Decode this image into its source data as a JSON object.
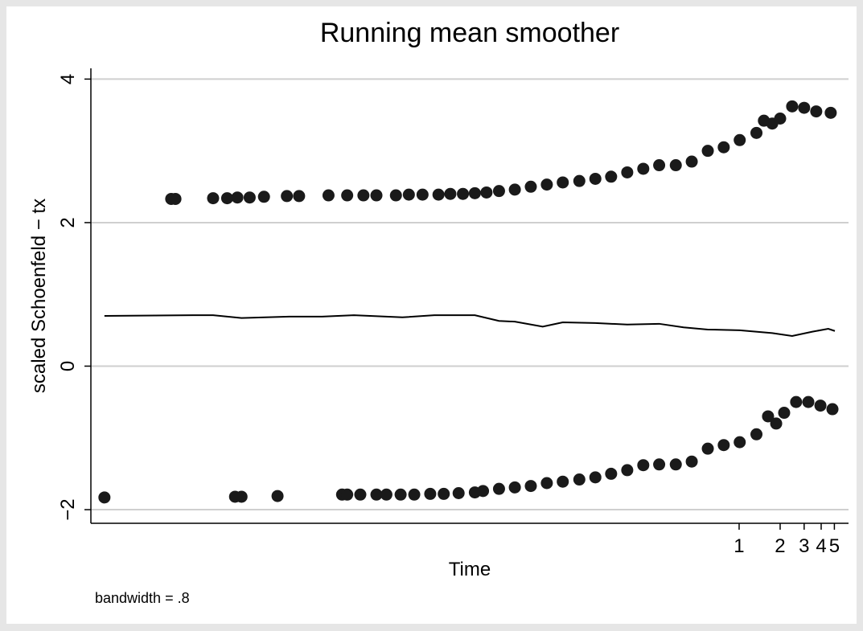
{
  "chart_data": {
    "type": "scatter",
    "title": "Running mean smoother",
    "x_label": "Time",
    "y_label": "scaled Schoenfeld − tx",
    "note": "bandwidth = .8",
    "x_log_scale": true,
    "grid": true,
    "xlim": [
      1.75e-05,
      6.35
    ],
    "xticks": [
      1,
      2,
      3,
      4,
      5
    ],
    "ylim": [
      -2.19,
      4.15
    ],
    "yticks": [
      {
        "value": -2,
        "label": "−2"
      },
      0,
      2,
      4
    ],
    "series": [
      {
        "type": "scatter",
        "color": "#1a1a1a",
        "x": [
          6.8e-05,
          7.3e-05,
          0.000138,
          0.000175,
          0.000208,
          0.000256,
          0.000326,
          0.00048,
          0.00059,
          0.00097,
          0.00133,
          0.00175,
          0.00218,
          0.00303,
          0.00377,
          0.00475,
          0.00622,
          0.0076,
          0.0094,
          0.0115,
          0.014,
          0.0173,
          0.0226,
          0.0296,
          0.0388,
          0.0508,
          0.0672,
          0.0881,
          0.115,
          0.151,
          0.198,
          0.259,
          0.343,
          0.449,
          0.589,
          0.771,
          1.01,
          1.34,
          1.52,
          1.75,
          2.0,
          2.45,
          3.0,
          3.68,
          4.7
        ],
        "values": [
          2.33,
          2.33,
          2.34,
          2.34,
          2.35,
          2.35,
          2.36,
          2.37,
          2.37,
          2.38,
          2.38,
          2.38,
          2.38,
          2.38,
          2.39,
          2.39,
          2.39,
          2.4,
          2.4,
          2.41,
          2.42,
          2.44,
          2.46,
          2.5,
          2.53,
          2.56,
          2.58,
          2.61,
          2.64,
          2.7,
          2.75,
          2.8,
          2.8,
          2.85,
          3.0,
          3.05,
          3.15,
          3.25,
          3.42,
          3.38,
          3.45,
          3.62,
          3.6,
          3.55,
          3.53
        ]
      },
      {
        "type": "scatter",
        "color": "#1a1a1a",
        "x": [
          2.2e-05,
          0.0002,
          0.000223,
          0.00041,
          0.00122,
          0.00133,
          0.00166,
          0.00218,
          0.00258,
          0.00328,
          0.00413,
          0.00541,
          0.0068,
          0.00874,
          0.0115,
          0.0132,
          0.0173,
          0.0226,
          0.0296,
          0.0388,
          0.0508,
          0.0672,
          0.0881,
          0.115,
          0.151,
          0.198,
          0.259,
          0.343,
          0.449,
          0.589,
          0.771,
          1.01,
          1.34,
          1.63,
          1.87,
          2.14,
          2.62,
          3.22,
          3.95,
          4.84
        ],
        "values": [
          -1.83,
          -1.82,
          -1.82,
          -1.81,
          -1.79,
          -1.79,
          -1.79,
          -1.79,
          -1.79,
          -1.79,
          -1.79,
          -1.78,
          -1.78,
          -1.77,
          -1.76,
          -1.74,
          -1.71,
          -1.69,
          -1.67,
          -1.63,
          -1.61,
          -1.58,
          -1.55,
          -1.5,
          -1.45,
          -1.38,
          -1.37,
          -1.37,
          -1.33,
          -1.15,
          -1.1,
          -1.06,
          -0.95,
          -0.7,
          -0.8,
          -0.65,
          -0.5,
          -0.5,
          -0.55,
          -0.6
        ]
      },
      {
        "type": "line",
        "color": "#000000",
        "x": [
          2.2e-05,
          9.8e-05,
          0.000138,
          0.000223,
          0.0005,
          0.00087,
          0.00149,
          0.00338,
          0.0058,
          0.0115,
          0.0173,
          0.0226,
          0.0362,
          0.0508,
          0.0881,
          0.151,
          0.259,
          0.391,
          0.589,
          1.01,
          1.75,
          2.45,
          3.45,
          4.51,
          5.04
        ],
        "values": [
          0.7,
          0.71,
          0.71,
          0.67,
          0.69,
          0.69,
          0.71,
          0.68,
          0.71,
          0.71,
          0.63,
          0.62,
          0.55,
          0.61,
          0.6,
          0.58,
          0.59,
          0.54,
          0.51,
          0.5,
          0.46,
          0.42,
          0.48,
          0.52,
          0.49
        ]
      }
    ]
  }
}
